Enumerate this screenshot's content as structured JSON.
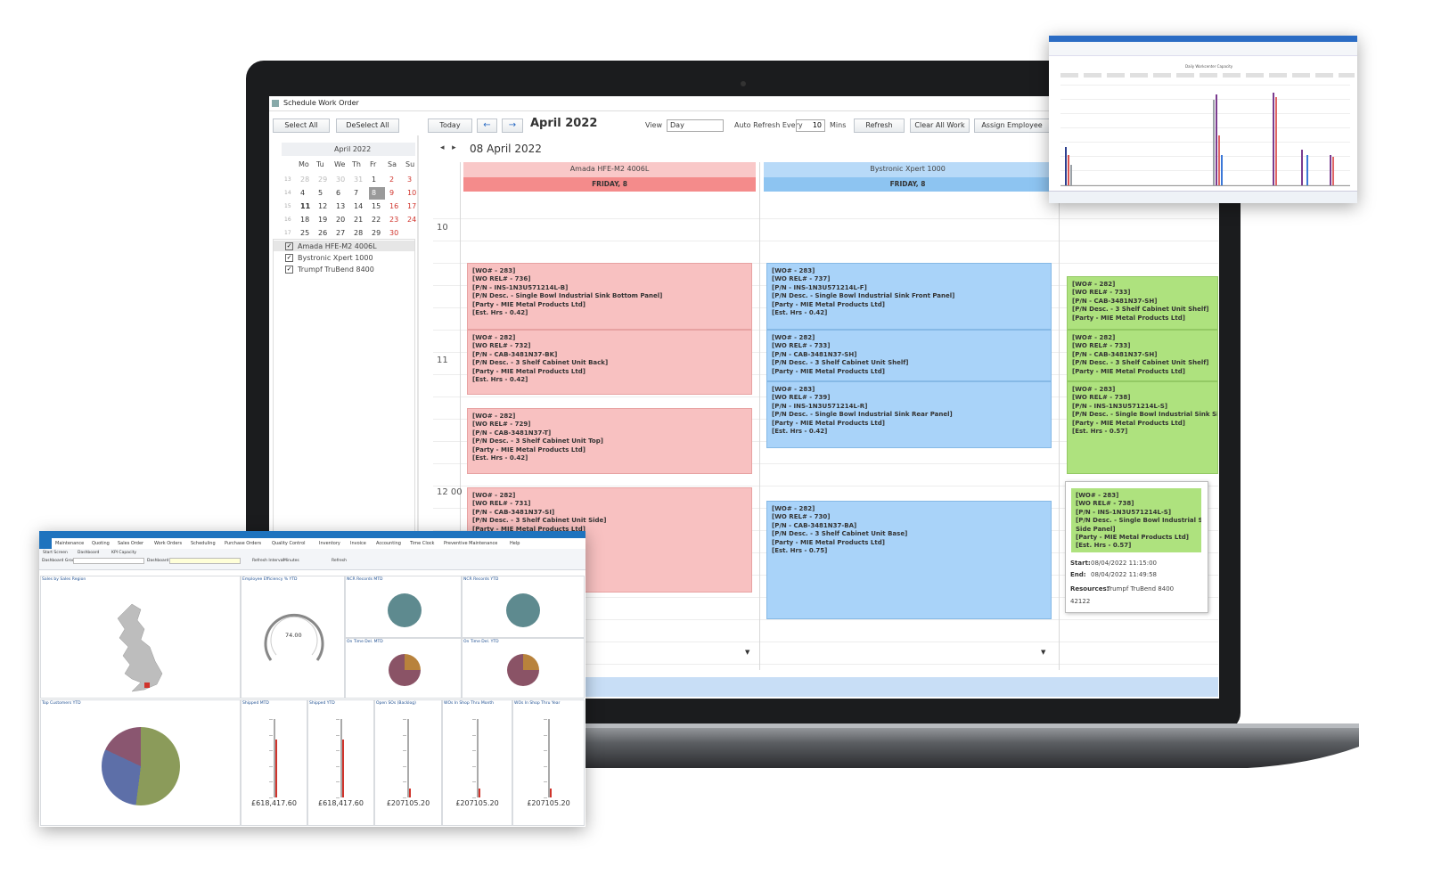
{
  "scheduler": {
    "window_title": "Schedule Work Order",
    "toolbar": {
      "select_all": "Select All",
      "deselect_all": "DeSelect All",
      "today": "Today",
      "month": "April 2022",
      "view_label": "View",
      "view": "Day",
      "auto_refresh": "Auto Refresh Every",
      "refresh_mins": "10",
      "mins": "Mins",
      "refresh": "Refresh",
      "clear": "Clear All Work",
      "assign": "Assign Employee"
    },
    "calendar": {
      "title": "April 2022",
      "weekdays": [
        "Mo",
        "Tu",
        "We",
        "Th",
        "Fr",
        "Sa",
        "Su"
      ],
      "weeks": [
        {
          "number": "13",
          "days": [
            "28",
            "29",
            "30",
            "31",
            "1",
            "2",
            "3"
          ]
        },
        {
          "number": "14",
          "days": [
            "4",
            "5",
            "6",
            "7",
            "8",
            "9",
            "10"
          ]
        },
        {
          "number": "15",
          "days": [
            "11",
            "12",
            "13",
            "14",
            "15",
            "16",
            "17"
          ]
        },
        {
          "number": "16",
          "days": [
            "18",
            "19",
            "20",
            "21",
            "22",
            "23",
            "24"
          ]
        },
        {
          "number": "17",
          "days": [
            "25",
            "26",
            "27",
            "28",
            "29",
            "30"
          ]
        }
      ]
    },
    "resources": [
      "Amada HFE-M2 4006L",
      "Bystronic Xpert 1000",
      "Trumpf TruBend 8400"
    ],
    "date": "08 April 2022",
    "times": [
      "10",
      "11",
      "12 00"
    ],
    "columns": [
      {
        "name": "Amada HFE-M2 4006L",
        "day": "FRIDAY, 8",
        "appointments": [
          [
            "[WO# - 283]",
            "[WO REL# - 736]",
            "[P/N - INS-1N3U571214L-B]",
            "[P/N Desc. - Single Bowl Industrial Sink Bottom Panel]",
            "[Party - MIE Metal Products Ltd]",
            "[Est. Hrs - 0.42]"
          ],
          [
            "[WO# - 282]",
            "[WO REL# - 732]",
            "[P/N - CAB-3481N37-BK]",
            "[P/N Desc. - 3 Shelf Cabinet Unit Back]",
            "[Party - MIE Metal Products Ltd]",
            "[Est. Hrs - 0.42]"
          ],
          [
            "[WO# - 282]",
            "[WO REL# - 729]",
            "[P/N - CAB-3481N37-T]",
            "[P/N Desc. - 3 Shelf Cabinet Unit Top]",
            "[Party - MIE Metal Products Ltd]",
            "[Est. Hrs - 0.42]"
          ],
          [
            "[WO# - 282]",
            "[WO REL# - 731]",
            "[P/N - CAB-3481N37-SI]",
            "[P/N Desc. - 3 Shelf Cabinet Unit Side]",
            "[Party - MIE Metal Products Ltd]"
          ]
        ]
      },
      {
        "name": "Bystronic Xpert 1000",
        "day": "FRIDAY, 8",
        "appointments": [
          [
            "[WO# - 283]",
            "[WO REL# - 737]",
            "[P/N - INS-1N3U571214L-F]",
            "[P/N Desc. - Single Bowl Industrial Sink Front Panel]",
            "[Party - MIE Metal Products Ltd]",
            "[Est. Hrs - 0.42]"
          ],
          [
            "[WO# - 282]",
            "[WO REL# - 733]",
            "[P/N - CAB-3481N37-SH]",
            "[P/N Desc. - 3 Shelf Cabinet Unit Shelf]",
            "[Party - MIE Metal Products Ltd]"
          ],
          [
            "[WO# - 283]",
            "[WO REL# - 739]",
            "[P/N - INS-1N3U571214L-R]",
            "[P/N Desc. - Single Bowl Industrial Sink Rear Panel]",
            "[Party - MIE Metal Products Ltd]",
            "[Est. Hrs - 0.42]"
          ],
          [
            "[WO# - 282]",
            "[WO REL# - 730]",
            "[P/N - CAB-3481N37-BA]",
            "[P/N Desc. - 3 Shelf Cabinet Unit Base]",
            "[Party - MIE Metal Products Ltd]",
            "[Est. Hrs - 0.75]"
          ]
        ]
      },
      {
        "appointments": [
          [
            "[WO# - 282]",
            "[WO REL# - 733]",
            "[P/N - CAB-3481N37-SH]",
            "[P/N Desc. - 3 Shelf Cabinet Unit Shelf]",
            "[Party - MIE Metal Products Ltd]"
          ],
          [
            "[WO# - 282]",
            "[WO REL# - 733]",
            "[P/N - CAB-3481N37-SH]",
            "[P/N Desc. - 3 Shelf Cabinet Unit Shelf]",
            "[Party - MIE Metal Products Ltd]"
          ],
          [
            "[WO# - 283]",
            "[WO REL# - 738]",
            "[P/N - INS-1N3U571214L-S]",
            "[P/N Desc. - Single Bowl Industrial Sink Side Panel]",
            "[Party - MIE Metal Products Ltd]",
            "[Est. Hrs - 0.57]"
          ]
        ]
      }
    ],
    "tooltip": {
      "lines": [
        "[WO# - 283]",
        "[WO REL# - 738]",
        "[P/N - INS-1N3U571214L-S]",
        "[P/N Desc. - Single Bowl Industrial Sink",
        "Side Panel]",
        "[Party - MIE Metal Products Ltd]",
        "[Est. Hrs - 0.57]"
      ],
      "start_label": "Start:",
      "start": "08/04/2022 11:15:00",
      "end_label": "End:",
      "end": "08/04/2022 11:49:58",
      "resources_label": "Resources:",
      "resources": "Trumpf TruBend 8400",
      "id": "42122"
    }
  },
  "dashboard": {
    "menu": [
      "Maintenance",
      "Quoting",
      "Sales Order",
      "Work Orders",
      "Scheduling",
      "Purchase Orders",
      "Quality Control",
      "Inventory",
      "Invoice",
      "Accounting",
      "Time Clock",
      "Preventive Maintenance",
      "Help"
    ],
    "tabs": [
      "Start Screen",
      "Dashboard",
      "KPI Capacity"
    ],
    "filters": [
      "Dashboard Group",
      "Dashboard",
      "Refresh Interval",
      "Minutes",
      "Refresh"
    ],
    "panels": [
      {
        "title": "Sales by Sales Region"
      },
      {
        "title": "Employee Efficiency % YTD",
        "value": "74.00"
      },
      {
        "title": "NCR Records MTD"
      },
      {
        "title": "NCR Records YTD"
      },
      {
        "title": "On Time Del. MTD"
      },
      {
        "title": "On Time Del. YTD"
      },
      {
        "title": "Top Customers YTD"
      },
      {
        "title": "Shipped MTD",
        "value": "£618,417.60"
      },
      {
        "title": "Shipped YTD",
        "value": "£618,417.60"
      },
      {
        "title": "Open SOs (Backlog)",
        "value": "£207105.20"
      },
      {
        "title": "WOs In Shop Thru Month",
        "value": "£207105.20"
      },
      {
        "title": "WOs In Shop Thru Year",
        "value": "£207105.20"
      }
    ]
  },
  "mini_chart": {
    "type": "bar",
    "title": "Daily Workcenter Capacity",
    "ylim": [
      0,
      100
    ],
    "series": [
      {
        "color": "#2d3f8f",
        "values": [
          38,
          0,
          0,
          0,
          0,
          0,
          0,
          0,
          0,
          0
        ]
      },
      {
        "color": "#d9534f",
        "values": [
          30,
          0,
          0,
          0,
          0,
          0,
          0,
          0,
          0,
          0
        ]
      },
      {
        "color": "#9aa0a6",
        "values": [
          20,
          0,
          0,
          0,
          0,
          85,
          0,
          0,
          0,
          0
        ]
      },
      {
        "color": "#7a3b8f",
        "values": [
          0,
          0,
          0,
          0,
          0,
          90,
          0,
          92,
          35,
          30
        ]
      },
      {
        "color": "#e06666",
        "values": [
          0,
          0,
          0,
          0,
          0,
          50,
          0,
          88,
          0,
          28
        ]
      },
      {
        "color": "#3c78d8",
        "values": [
          0,
          0,
          0,
          0,
          0,
          30,
          0,
          0,
          30,
          0
        ]
      }
    ]
  }
}
